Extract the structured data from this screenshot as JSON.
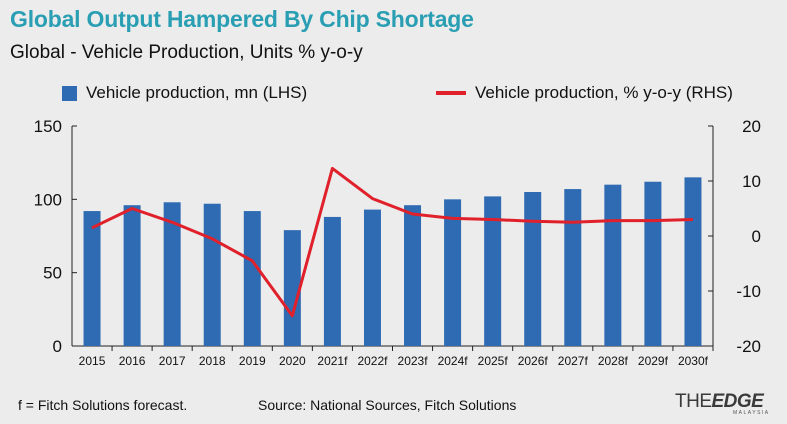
{
  "header": {
    "title": "Global Output Hampered By Chip Shortage",
    "subtitle": "Global - Vehicle Production, Units % y-o-y"
  },
  "footer": {
    "footnote": "f = Fitch Solutions forecast.",
    "source": "Source: National Sources, Fitch Solutions",
    "logo_the": "THE",
    "logo_edge": "EDGE",
    "logo_sub": "MALAYSIA"
  },
  "colors": {
    "title": "#2a9fb3",
    "bar": "#2f6bb3",
    "line": "#e0202a",
    "background": "#ececec"
  },
  "chart_data": {
    "type": "bar",
    "categories": [
      "2015",
      "2016",
      "2017",
      "2018",
      "2019",
      "2020",
      "2021f",
      "2022f",
      "2023f",
      "2024f",
      "2025f",
      "2026f",
      "2027f",
      "2028f",
      "2029f",
      "2030f"
    ],
    "series": [
      {
        "name": "Vehicle production, mn (LHS)",
        "type": "bar",
        "axis": "left",
        "values": [
          92,
          96,
          98,
          97,
          92,
          79,
          88,
          93,
          96,
          100,
          102,
          105,
          107,
          110,
          112,
          115
        ]
      },
      {
        "name": "Vehicle production, % y-o-y (RHS)",
        "type": "line",
        "axis": "right",
        "values": [
          1.5,
          5.0,
          2.5,
          -0.5,
          -4.5,
          -14.5,
          12.3,
          6.8,
          4.0,
          3.2,
          3.0,
          2.7,
          2.5,
          2.8,
          2.8,
          3.0
        ]
      }
    ],
    "y_left": {
      "lim": [
        0,
        150
      ],
      "ticks": [
        "0",
        "50",
        "100",
        "150"
      ],
      "values": [
        0,
        50,
        100,
        150
      ]
    },
    "y_right": {
      "lim": [
        -20,
        20
      ],
      "ticks": [
        "-20",
        "-10",
        "0",
        "10",
        "20"
      ],
      "values": [
        -20,
        -10,
        0,
        10,
        20
      ]
    },
    "grid": false,
    "legend_position": "top"
  }
}
